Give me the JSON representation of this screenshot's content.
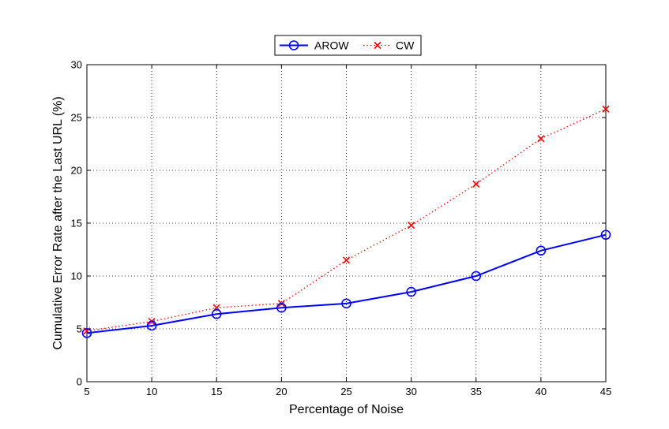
{
  "chart_data": {
    "type": "line",
    "title": "",
    "xlabel": "Percentage of Noise",
    "ylabel": "Cumulative Error Rate after the Last URL (%)",
    "xlim": [
      5,
      45
    ],
    "ylim": [
      0,
      30
    ],
    "x": [
      5,
      10,
      15,
      20,
      25,
      30,
      35,
      40,
      45
    ],
    "x_ticks": [
      "5",
      "10",
      "15",
      "20",
      "25",
      "30",
      "35",
      "40",
      "45"
    ],
    "y_ticks": [
      "0",
      "5",
      "10",
      "15",
      "20",
      "25",
      "30"
    ],
    "grid": true,
    "legend_position": "top-center",
    "series": [
      {
        "name": "AROW",
        "values": [
          4.6,
          5.3,
          6.4,
          7.0,
          7.4,
          8.5,
          10.0,
          12.4,
          13.9
        ],
        "color": "#0000ff",
        "marker": "circle",
        "line": "solid"
      },
      {
        "name": "CW",
        "values": [
          4.8,
          5.7,
          7.0,
          7.4,
          11.5,
          14.8,
          18.7,
          23.0,
          25.8
        ],
        "color": "#ff0000",
        "marker": "x",
        "line": "dotted"
      }
    ]
  }
}
